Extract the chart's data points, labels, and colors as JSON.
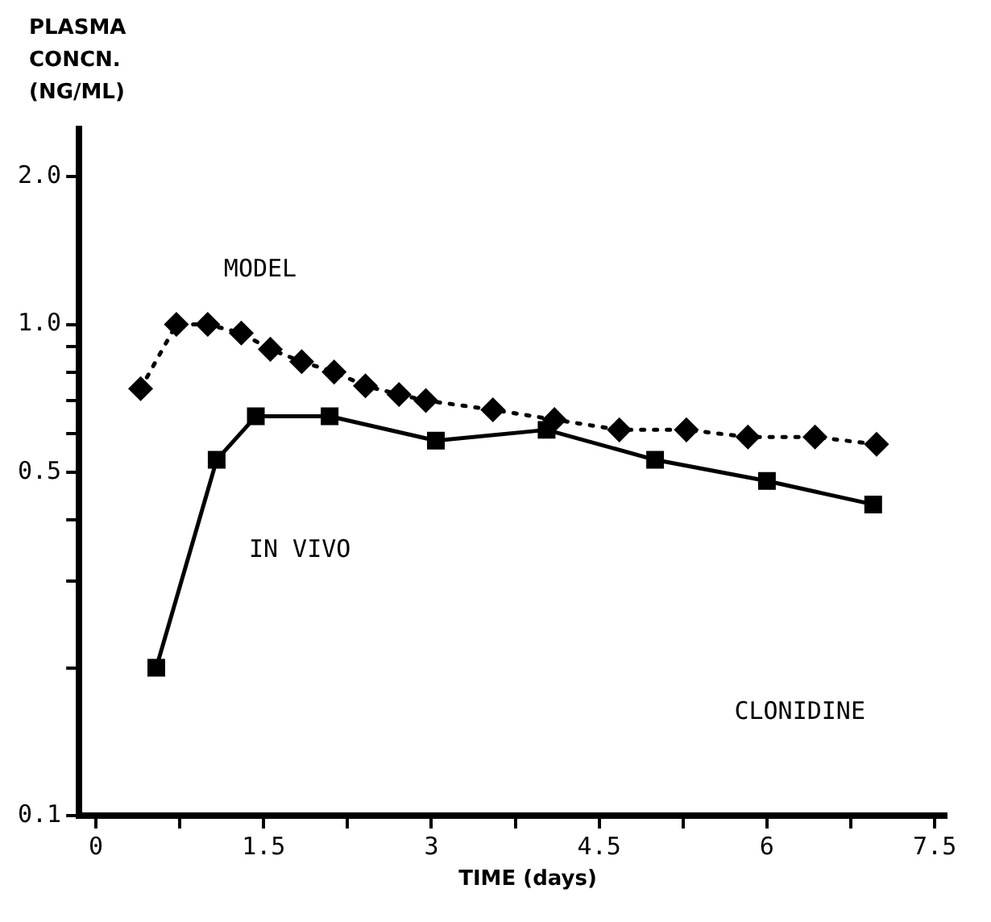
{
  "chart_data": {
    "type": "line",
    "xlabel": "TIME (days)",
    "ylabel": "PLASMA CONCN. (NG/ML)",
    "log": "y",
    "xlim": [
      -0.15,
      7.6
    ],
    "ylim": [
      0.1,
      2.5
    ],
    "xticks": [
      0,
      {
        "value": 0.75,
        "label": null
      },
      1.5,
      {
        "value": 2.25,
        "label": null
      },
      3,
      {
        "value": 3.75,
        "label": null
      },
      4.5,
      {
        "value": 5.25,
        "label": null
      },
      6,
      {
        "value": 6.75,
        "label": null
      },
      7.5
    ],
    "yticks": [
      {
        "value": 0.1,
        "label": "0.1"
      },
      {
        "value": 0.2,
        "label": null
      },
      {
        "value": 0.3,
        "label": null
      },
      {
        "value": 0.4,
        "label": null
      },
      0.5,
      {
        "value": 0.6,
        "label": null
      },
      {
        "value": 0.7,
        "label": null
      },
      {
        "value": 0.8,
        "label": null
      },
      {
        "value": 0.9,
        "label": null
      },
      {
        "value": 1,
        "label": "1.0"
      },
      {
        "value": 2,
        "label": "2.0"
      }
    ],
    "series": [
      {
        "name": "MODEL",
        "color": "#000000",
        "marker": "diamond",
        "line_style": "dotted",
        "x": [
          0.4,
          0.72,
          1.0,
          1.3,
          1.56,
          1.84,
          2.13,
          2.41,
          2.71,
          2.95,
          3.55,
          4.1,
          4.68,
          5.28,
          5.83,
          6.43,
          6.98
        ],
        "values": [
          0.74,
          1.0,
          1.0,
          0.96,
          0.89,
          0.84,
          0.8,
          0.75,
          0.72,
          0.7,
          0.67,
          0.64,
          0.61,
          0.61,
          0.59,
          0.59,
          0.57
        ]
      },
      {
        "name": "IN VIVO",
        "color": "#000000",
        "marker": "square",
        "line_style": "solid",
        "x": [
          0.54,
          1.08,
          1.43,
          2.09,
          3.04,
          4.03,
          5.0,
          6.0,
          6.95
        ],
        "values": [
          0.2,
          0.53,
          0.65,
          0.65,
          0.58,
          0.61,
          0.53,
          0.48,
          0.43
        ]
      }
    ],
    "annotations": [
      "CLONIDINE"
    ]
  }
}
